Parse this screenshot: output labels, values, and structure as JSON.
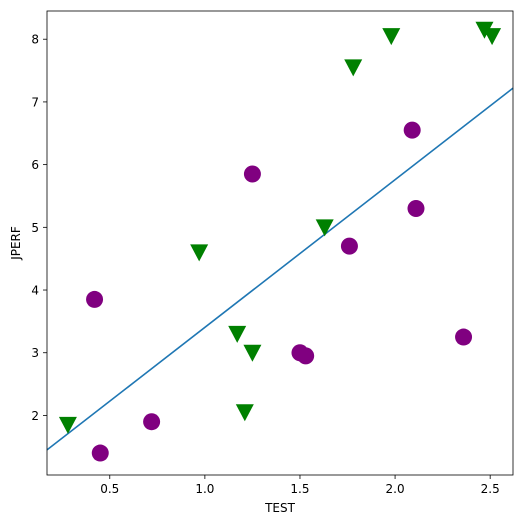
{
  "chart_data": {
    "type": "scatter",
    "title": "",
    "xlabel": "TEST",
    "ylabel": "JPERF",
    "xlim": [
      0.17,
      2.62
    ],
    "ylim": [
      1.05,
      8.45
    ],
    "xticks": [
      0.5,
      1.0,
      1.5,
      2.0,
      2.5
    ],
    "yticks": [
      2,
      3,
      4,
      5,
      6,
      7,
      8
    ],
    "xtick_labels": [
      "0.5",
      "1.0",
      "1.5",
      "2.0",
      "2.5"
    ],
    "ytick_labels": [
      "2",
      "3",
      "4",
      "5",
      "6",
      "7",
      "8"
    ],
    "grid": false,
    "legend": "none",
    "series": [
      {
        "marker": "circle",
        "color": "#800080",
        "points": [
          {
            "x": 0.42,
            "y": 3.85
          },
          {
            "x": 0.45,
            "y": 1.4
          },
          {
            "x": 0.72,
            "y": 1.9
          },
          {
            "x": 1.25,
            "y": 5.85
          },
          {
            "x": 1.5,
            "y": 3.0
          },
          {
            "x": 1.53,
            "y": 2.95
          },
          {
            "x": 1.76,
            "y": 4.7
          },
          {
            "x": 2.09,
            "y": 6.55
          },
          {
            "x": 2.11,
            "y": 5.3
          },
          {
            "x": 2.36,
            "y": 3.25
          }
        ]
      },
      {
        "marker": "triangle-down",
        "color": "#008000",
        "points": [
          {
            "x": 0.28,
            "y": 1.85
          },
          {
            "x": 0.97,
            "y": 4.6
          },
          {
            "x": 1.17,
            "y": 3.3
          },
          {
            "x": 1.21,
            "y": 2.05
          },
          {
            "x": 1.25,
            "y": 3.0
          },
          {
            "x": 1.63,
            "y": 5.0
          },
          {
            "x": 1.78,
            "y": 7.55
          },
          {
            "x": 1.98,
            "y": 8.05
          },
          {
            "x": 2.47,
            "y": 8.15
          },
          {
            "x": 2.51,
            "y": 8.05
          }
        ]
      }
    ],
    "fit_line": {
      "color": "#1f77b4",
      "points": [
        {
          "x": 0.17,
          "y": 1.45
        },
        {
          "x": 2.62,
          "y": 7.22
        }
      ]
    }
  }
}
